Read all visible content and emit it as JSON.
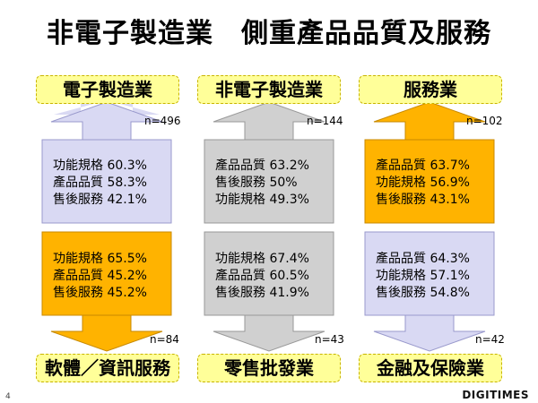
{
  "title": "非電子製造業　側重產品品質及服務",
  "colors": {
    "yellow": "#ffff99",
    "orange": "#ffb300",
    "lavender": "#d9d9f3",
    "gray": "#d0d0d0"
  },
  "columns": [
    {
      "top_label": "電子製造業",
      "top_n": "n=496",
      "top_lines": [
        "功能規格 60.3%",
        "產品品質 58.3%",
        "售後服務 42.1%"
      ],
      "bottom_lines": [
        "功能規格 65.5%",
        "產品品質 45.2%",
        "售後服務 45.2%"
      ],
      "bottom_n": "n=84",
      "bottom_label": "軟體／資訊服務"
    },
    {
      "top_label": "非電子製造業",
      "top_n": "n=144",
      "top_lines": [
        "產品品質 63.2%",
        "售後服務 50%",
        "功能規格 49.3%"
      ],
      "bottom_lines": [
        "功能規格 67.4%",
        "產品品質 60.5%",
        "售後服務 41.9%"
      ],
      "bottom_n": "n=43",
      "bottom_label": "零售批發業"
    },
    {
      "top_label": "服務業",
      "top_n": "n=102",
      "top_lines": [
        "產品品質 63.7%",
        "功能規格 56.9%",
        "售後服務 43.1%"
      ],
      "bottom_lines": [
        "產品品質 64.3%",
        "功能規格 57.1%",
        "售後服務 54.8%"
      ],
      "bottom_n": "n=42",
      "bottom_label": "金融及保險業"
    }
  ],
  "page_number": "4",
  "logo_text": "DIGITIMES"
}
